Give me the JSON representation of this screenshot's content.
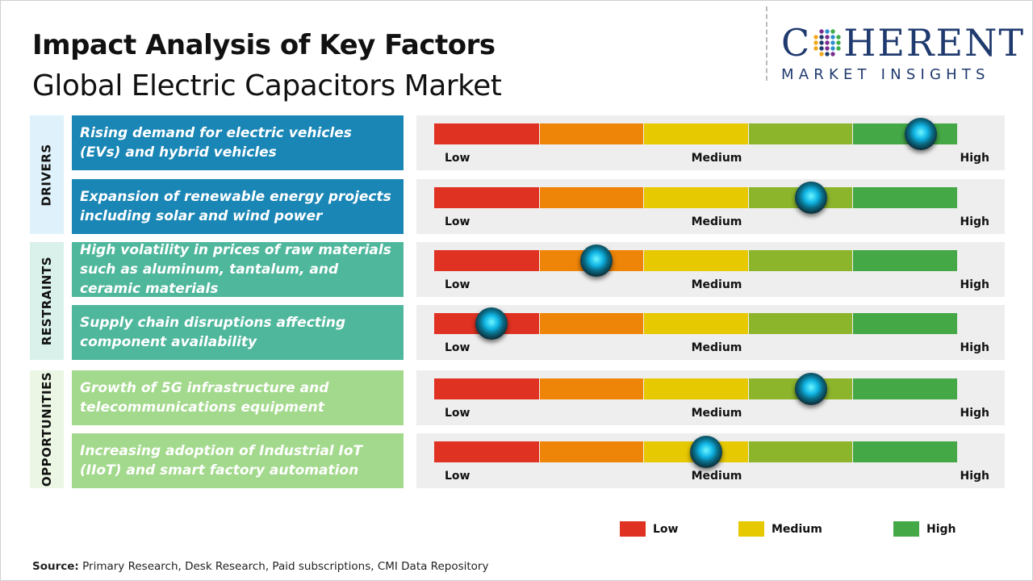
{
  "title": "Impact Analysis of Key Factors",
  "subtitle": "Global Electric Capacitors Market",
  "logo": {
    "line1": "COHERENT",
    "line2": "MARKET INSIGHTS"
  },
  "scale": {
    "labels": [
      "Low",
      "Medium",
      "High"
    ],
    "segment_colors": [
      "#e03222",
      "#ee8508",
      "#e7c902",
      "#8db52c",
      "#45a846"
    ]
  },
  "chart_data": {
    "type": "table",
    "categories": [
      {
        "name": "DRIVERS",
        "color": "#1a86b5",
        "band_color": "#dff2fb"
      },
      {
        "name": "RESTRAINTS",
        "color": "#4fb79c",
        "band_color": "#d9f1ea"
      },
      {
        "name": "OPPORTUNITIES",
        "color": "#a3d98c",
        "band_color": "#ebf7e4"
      }
    ],
    "factors": [
      {
        "category": "DRIVERS",
        "text": "Rising demand for electric vehicles (EVs) and hybrid vehicles",
        "impact": 0.93
      },
      {
        "category": "DRIVERS",
        "text": "Expansion of renewable energy projects including solar and wind power",
        "impact": 0.72
      },
      {
        "category": "RESTRAINTS",
        "text": "High volatility in prices of raw materials such as aluminum, tantalum, and ceramic materials",
        "impact": 0.31
      },
      {
        "category": "RESTRAINTS",
        "text": "Supply chain disruptions affecting component availability",
        "impact": 0.11
      },
      {
        "category": "OPPORTUNITIES",
        "text": "Growth of 5G infrastructure and telecommunications equipment",
        "impact": 0.72
      },
      {
        "category": "OPPORTUNITIES",
        "text": "Increasing adoption of Industrial IoT (IIoT) and smart factory automation",
        "impact": 0.52
      }
    ]
  },
  "legend": [
    {
      "label": "Low",
      "color": "#e03222"
    },
    {
      "label": "Medium",
      "color": "#e7c902"
    },
    {
      "label": "High",
      "color": "#45a846"
    }
  ],
  "source": {
    "label": "Source:",
    "text": " Primary Research, Desk Research, Paid subscriptions, CMI Data Repository"
  }
}
